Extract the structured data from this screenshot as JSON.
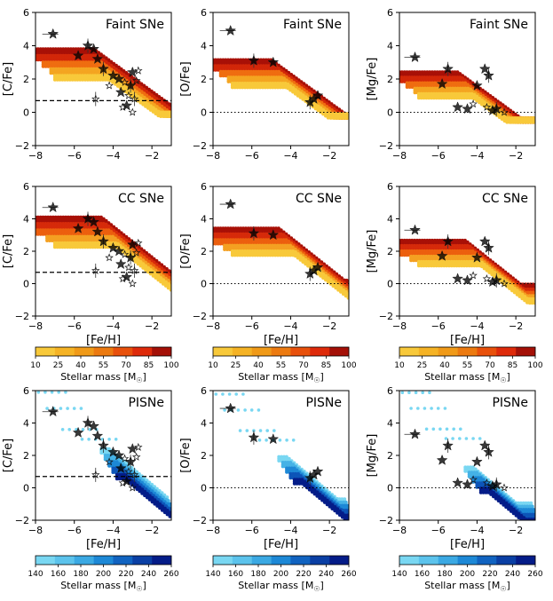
{
  "figure": {
    "description_units": "[Fe/H] vs abundance ratios"
  },
  "chart_data": [
    {
      "type": "scatter",
      "panel": "faint-c",
      "model": "Faint",
      "title": "Faint SNe",
      "ylabel": "[C/Fe]",
      "xlabel": "",
      "xlim": [
        -8,
        -1
      ],
      "ylim": [
        -2,
        6
      ],
      "xticks": [
        -8,
        -6,
        -4,
        -2
      ],
      "yticks": [
        -2,
        0,
        2,
        4,
        6
      ],
      "refline": {
        "y": 0.7,
        "style": "dashed"
      },
      "stars": [
        [
          -7.1,
          4.7
        ],
        [
          -5.3,
          4.0
        ],
        [
          -5.0,
          3.8
        ],
        [
          -4.8,
          3.2
        ],
        [
          -5.8,
          3.4
        ],
        [
          -4.5,
          2.6
        ],
        [
          -4.0,
          2.2
        ],
        [
          -3.7,
          2.0
        ],
        [
          -3.4,
          1.8
        ],
        [
          -3.1,
          1.6
        ],
        [
          -2.8,
          1.9
        ],
        [
          -3.2,
          1.0
        ],
        [
          -3.6,
          1.2
        ],
        [
          -2.9,
          0.8
        ],
        [
          -4.2,
          1.6
        ],
        [
          -3.0,
          2.4
        ],
        [
          -2.7,
          2.5
        ],
        [
          -4.9,
          0.8
        ],
        [
          -3.3,
          0.4
        ],
        [
          -3.0,
          0.0
        ],
        [
          -3.5,
          0.3
        ]
      ]
    },
    {
      "type": "scatter",
      "panel": "faint-o",
      "model": "Faint",
      "title": "Faint SNe",
      "ylabel": "[O/Fe]",
      "xlabel": "",
      "xlim": [
        -8,
        -1
      ],
      "ylim": [
        -2,
        6
      ],
      "xticks": [
        -8,
        -6,
        -4,
        -2
      ],
      "yticks": [
        -2,
        0,
        2,
        4,
        6
      ],
      "refline": {
        "y": 0,
        "style": "dotted"
      },
      "stars": [
        [
          -7.1,
          4.9
        ],
        [
          -5.9,
          3.1
        ],
        [
          -4.9,
          3.0
        ],
        [
          -2.8,
          0.8
        ],
        [
          -2.6,
          1.0
        ],
        [
          -3.0,
          0.6
        ]
      ]
    },
    {
      "type": "scatter",
      "panel": "faint-mg",
      "model": "Faint",
      "title": "Faint SNe",
      "ylabel": "[Mg/Fe]",
      "xlabel": "",
      "xlim": [
        -8,
        -1
      ],
      "ylim": [
        -2,
        6
      ],
      "xticks": [
        -8,
        -6,
        -4,
        -2
      ],
      "yticks": [
        -2,
        0,
        2,
        4,
        6
      ],
      "refline": {
        "y": 0,
        "style": "dotted"
      },
      "stars": [
        [
          -7.2,
          3.3
        ],
        [
          -5.5,
          2.6
        ],
        [
          -5.8,
          1.7
        ],
        [
          -4.0,
          1.6
        ],
        [
          -3.6,
          2.6
        ],
        [
          -3.4,
          2.2
        ],
        [
          -5.0,
          0.3
        ],
        [
          -4.5,
          0.2
        ],
        [
          -3.5,
          0.3
        ],
        [
          -3.0,
          0.2
        ],
        [
          -2.6,
          0.0
        ],
        [
          -4.2,
          0.5
        ],
        [
          -3.2,
          0.1
        ]
      ]
    },
    {
      "type": "scatter",
      "panel": "cc-c",
      "model": "CC",
      "title": "CC SNe",
      "ylabel": "[C/Fe]",
      "xlabel": "[Fe/H]",
      "xlim": [
        -8,
        -1
      ],
      "ylim": [
        -2,
        6
      ],
      "xticks": [
        -8,
        -6,
        -4,
        -2
      ],
      "yticks": [
        -2,
        0,
        2,
        4,
        6
      ],
      "refline": {
        "y": 0.7,
        "style": "dashed"
      },
      "stars": [
        [
          -7.1,
          4.7
        ],
        [
          -5.3,
          4.0
        ],
        [
          -5.0,
          3.8
        ],
        [
          -4.8,
          3.2
        ],
        [
          -5.8,
          3.4
        ],
        [
          -4.5,
          2.6
        ],
        [
          -4.0,
          2.2
        ],
        [
          -3.7,
          2.0
        ],
        [
          -3.4,
          1.8
        ],
        [
          -3.1,
          1.6
        ],
        [
          -2.8,
          1.9
        ],
        [
          -3.2,
          1.0
        ],
        [
          -3.6,
          1.2
        ],
        [
          -2.9,
          0.8
        ],
        [
          -4.2,
          1.6
        ],
        [
          -3.0,
          2.4
        ],
        [
          -2.7,
          2.5
        ],
        [
          -4.9,
          0.8
        ],
        [
          -3.3,
          0.4
        ],
        [
          -3.0,
          0.0
        ],
        [
          -3.5,
          0.3
        ]
      ]
    },
    {
      "type": "scatter",
      "panel": "cc-o",
      "model": "CC",
      "title": "CC SNe",
      "ylabel": "[O/Fe]",
      "xlabel": "[Fe/H]",
      "xlim": [
        -8,
        -1
      ],
      "ylim": [
        -2,
        6
      ],
      "xticks": [
        -8,
        -6,
        -4,
        -2
      ],
      "yticks": [
        -2,
        0,
        2,
        4,
        6
      ],
      "refline": {
        "y": 0,
        "style": "dotted"
      },
      "stars": [
        [
          -7.1,
          4.9
        ],
        [
          -5.9,
          3.1
        ],
        [
          -4.9,
          3.0
        ],
        [
          -2.8,
          0.8
        ],
        [
          -2.6,
          1.0
        ],
        [
          -3.0,
          0.6
        ]
      ]
    },
    {
      "type": "scatter",
      "panel": "cc-mg",
      "model": "CC",
      "title": "CC SNe",
      "ylabel": "[Mg/Fe]",
      "xlabel": "[Fe/H]",
      "xlim": [
        -8,
        -1
      ],
      "ylim": [
        -2,
        6
      ],
      "xticks": [
        -8,
        -6,
        -4,
        -2
      ],
      "yticks": [
        -2,
        0,
        2,
        4,
        6
      ],
      "refline": {
        "y": 0,
        "style": "dotted"
      },
      "stars": [
        [
          -7.2,
          3.3
        ],
        [
          -5.5,
          2.6
        ],
        [
          -5.8,
          1.7
        ],
        [
          -4.0,
          1.6
        ],
        [
          -3.6,
          2.6
        ],
        [
          -3.4,
          2.2
        ],
        [
          -5.0,
          0.3
        ],
        [
          -4.5,
          0.2
        ],
        [
          -3.5,
          0.3
        ],
        [
          -3.0,
          0.2
        ],
        [
          -2.6,
          0.0
        ],
        [
          -4.2,
          0.5
        ],
        [
          -3.2,
          0.1
        ]
      ]
    },
    {
      "type": "scatter",
      "panel": "pi-c",
      "model": "PI",
      "title": "PISNe",
      "ylabel": "[C/Fe]",
      "xlabel": "[Fe/H]",
      "xlim": [
        -8,
        -1
      ],
      "ylim": [
        -2,
        6
      ],
      "xticks": [
        -8,
        -6,
        -4,
        -2
      ],
      "yticks": [
        -2,
        0,
        2,
        4,
        6
      ],
      "refline": {
        "y": 0.7,
        "style": "dashed"
      },
      "stars": [
        [
          -7.1,
          4.7
        ],
        [
          -5.3,
          4.0
        ],
        [
          -5.0,
          3.8
        ],
        [
          -4.8,
          3.2
        ],
        [
          -5.8,
          3.4
        ],
        [
          -4.5,
          2.6
        ],
        [
          -4.0,
          2.2
        ],
        [
          -3.7,
          2.0
        ],
        [
          -3.4,
          1.8
        ],
        [
          -3.1,
          1.6
        ],
        [
          -2.8,
          1.9
        ],
        [
          -3.2,
          1.0
        ],
        [
          -3.6,
          1.2
        ],
        [
          -2.9,
          0.8
        ],
        [
          -4.2,
          1.6
        ],
        [
          -3.0,
          2.4
        ],
        [
          -2.7,
          2.5
        ],
        [
          -4.9,
          0.8
        ],
        [
          -3.3,
          0.4
        ],
        [
          -3.0,
          0.0
        ],
        [
          -3.5,
          0.3
        ]
      ]
    },
    {
      "type": "scatter",
      "panel": "pi-o",
      "model": "PI",
      "title": "PISNe",
      "ylabel": "[O/Fe]",
      "xlabel": "[Fe/H]",
      "xlim": [
        -8,
        -1
      ],
      "ylim": [
        -2,
        6
      ],
      "xticks": [
        -8,
        -6,
        -4,
        -2
      ],
      "yticks": [
        -2,
        0,
        2,
        4,
        6
      ],
      "refline": {
        "y": 0,
        "style": "dotted"
      },
      "stars": [
        [
          -7.1,
          4.9
        ],
        [
          -5.9,
          3.1
        ],
        [
          -4.9,
          3.0
        ],
        [
          -2.8,
          0.8
        ],
        [
          -2.6,
          1.0
        ],
        [
          -3.0,
          0.6
        ]
      ]
    },
    {
      "type": "scatter",
      "panel": "pi-mg",
      "model": "PI",
      "title": "PISNe",
      "ylabel": "[Mg/Fe]",
      "xlabel": "[Fe/H]",
      "xlim": [
        -8,
        -1
      ],
      "ylim": [
        -2,
        6
      ],
      "xticks": [
        -8,
        -6,
        -4,
        -2
      ],
      "yticks": [
        -2,
        0,
        2,
        4,
        6
      ],
      "refline": {
        "y": 0,
        "style": "dotted"
      },
      "stars": [
        [
          -7.2,
          3.3
        ],
        [
          -5.5,
          2.6
        ],
        [
          -5.8,
          1.7
        ],
        [
          -4.0,
          1.6
        ],
        [
          -3.6,
          2.6
        ],
        [
          -3.4,
          2.2
        ],
        [
          -5.0,
          0.3
        ],
        [
          -4.5,
          0.2
        ],
        [
          -3.5,
          0.3
        ],
        [
          -3.0,
          0.2
        ],
        [
          -2.6,
          0.0
        ],
        [
          -4.2,
          0.5
        ],
        [
          -3.2,
          0.1
        ]
      ]
    }
  ],
  "models": {
    "Faint": {
      "bands": [
        {
          "y0": 3.8,
          "drop_start": -5.0,
          "slope": 0.85,
          "ymin": 0.0,
          "x0": -8.0,
          "x1": -1.0
        },
        {
          "y0": 3.4,
          "drop_start": -4.8,
          "slope": 0.85,
          "ymin": 0.0,
          "x0": -8.0,
          "x1": -1.0
        },
        {
          "y0": 3.0,
          "drop_start": -4.6,
          "slope": 0.85,
          "ymin": 0.0,
          "x0": -7.6,
          "x1": -1.0
        },
        {
          "y0": 2.6,
          "drop_start": -4.4,
          "slope": 0.85,
          "ymin": 0.0,
          "x0": -7.2,
          "x1": -1.0
        },
        {
          "y0": 2.2,
          "drop_start": -4.2,
          "slope": 0.85,
          "ymin": 0.0,
          "x0": -7.0,
          "x1": -1.0
        }
      ]
    },
    "CC": {
      "bands": [
        {
          "y0": 4.1,
          "drop_start": -4.6,
          "slope": 0.95,
          "ymin": 0.3,
          "x0": -8.0,
          "x1": -1.0
        },
        {
          "y0": 3.7,
          "drop_start": -4.4,
          "slope": 0.95,
          "ymin": 0.0,
          "x0": -8.0,
          "x1": -1.0
        },
        {
          "y0": 3.3,
          "drop_start": -4.2,
          "slope": 0.95,
          "ymin": -0.2,
          "x0": -8.0,
          "x1": -1.0
        },
        {
          "y0": 2.9,
          "drop_start": -4.0,
          "slope": 0.95,
          "ymin": -0.4,
          "x0": -7.4,
          "x1": -1.0
        },
        {
          "y0": 2.5,
          "drop_start": -3.8,
          "slope": 0.95,
          "ymin": -0.6,
          "x0": -7.0,
          "x1": -1.0
        }
      ]
    },
    "PI": {
      "bands": [
        {
          "y0": 2.4,
          "drop_start": -4.2,
          "slope": 1.0,
          "ymin": -0.6,
          "x0": -4.6,
          "x1": -1.2
        },
        {
          "y0": 2.0,
          "drop_start": -4.0,
          "slope": 1.0,
          "ymin": -0.8,
          "x0": -4.4,
          "x1": -1.1
        },
        {
          "y0": 1.6,
          "drop_start": -3.8,
          "slope": 1.0,
          "ymin": -1.0,
          "x0": -4.2,
          "x1": -1.0
        },
        {
          "y0": 1.2,
          "drop_start": -3.6,
          "slope": 1.0,
          "ymin": -1.3,
          "x0": -4.0,
          "x1": -1.0
        },
        {
          "y0": 0.8,
          "drop_start": -3.4,
          "slope": 1.0,
          "ymin": -1.6,
          "x0": -3.8,
          "x1": -1.0
        }
      ],
      "high": [
        [
          -7.8,
          5.9
        ],
        [
          -7.0,
          4.9
        ],
        [
          -6.2,
          3.6
        ],
        [
          -5.2,
          3.0
        ]
      ]
    }
  },
  "colorbars": [
    {
      "name": "cc-colorbar",
      "label": "Stellar mass [M",
      "sun": "☉",
      "close": "]",
      "ticks": [
        "10",
        "25",
        "40",
        "55",
        "70",
        "85",
        "100"
      ],
      "colors": [
        "#f8c93a",
        "#f5b325",
        "#f09a18",
        "#ec7a10",
        "#e8500b",
        "#de2a0a",
        "#a41007"
      ]
    },
    {
      "name": "pi-colorbar",
      "label": "Stellar mass [M",
      "sun": "☉",
      "close": "]",
      "ticks": [
        "140",
        "160",
        "180",
        "200",
        "220",
        "240",
        "260"
      ],
      "colors": [
        "#79d7f2",
        "#5cc3ec",
        "#3ba9e3",
        "#1d88d6",
        "#1163c0",
        "#0a3fa4",
        "#041c88"
      ]
    }
  ],
  "palette": {
    "faint": [
      "#a81007",
      "#d22709",
      "#ef6d10",
      "#f4a521",
      "#f8c93a"
    ],
    "cc": [
      "#a81007",
      "#d62a0a",
      "#ec5f0e",
      "#f4a022",
      "#f8c93a"
    ],
    "pi": [
      "#79d7f2",
      "#45b2e6",
      "#1d88d6",
      "#0d55b8",
      "#041c88"
    ]
  }
}
